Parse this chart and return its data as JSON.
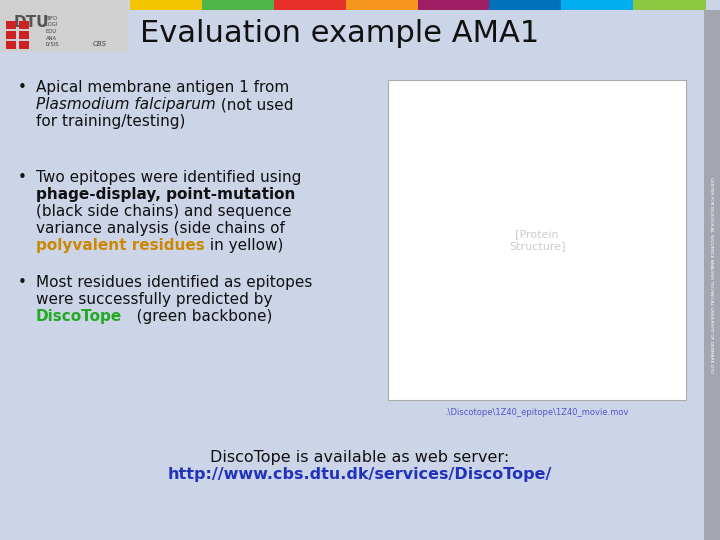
{
  "title": "Evaluation example AMA1",
  "background_color": "#ccd4e8",
  "title_color": "#111111",
  "title_fontsize": 22,
  "header_bar_colors": [
    "#f5c400",
    "#4db848",
    "#e8302a",
    "#f7941d",
    "#9e1f63",
    "#0070bb",
    "#00aeef",
    "#8dc63f"
  ],
  "bullet1_normal": "Apical membrane antigen 1 from ",
  "bullet1_italic": "Plasmodium falciparum",
  "bullet1_rest": " (not used",
  "bullet1_line3": "for training/testing)",
  "bullet2_line1": "Two epitopes were identified using",
  "bullet2_bold": "phage-display, point-mutation",
  "bullet2_line3": "(black side chains) and sequence",
  "bullet2_line4": "variance analysis (side chains of",
  "bullet2_orange": "polyvalent residues",
  "bullet2_line5": " in yellow)",
  "bullet3_line1": "Most residues identified as epitopes",
  "bullet3_line2": "were successfully predicted by",
  "bullet3_green": "DiscoTope",
  "bullet3_rest": "   (green backbone)",
  "link_text": ".\\Discotope\\1Z40_epitope\\1Z40_movie.mov",
  "link_color": "#5555cc",
  "bottom_line1": "DiscoTope is available as web server:",
  "bottom_line2": "http://www.cbs.dtu.dk/services/DiscoTope/",
  "bottom_color": "#2233bb",
  "orange_color": "#cc8800",
  "green_color": "#22aa22",
  "text_color": "#111111",
  "right_bar_text": "CENTER FOR BIOLOGICAL SEQUENCE ANALYSIS TECHNICAL UNIVERSITY OF DENMARK DTU"
}
